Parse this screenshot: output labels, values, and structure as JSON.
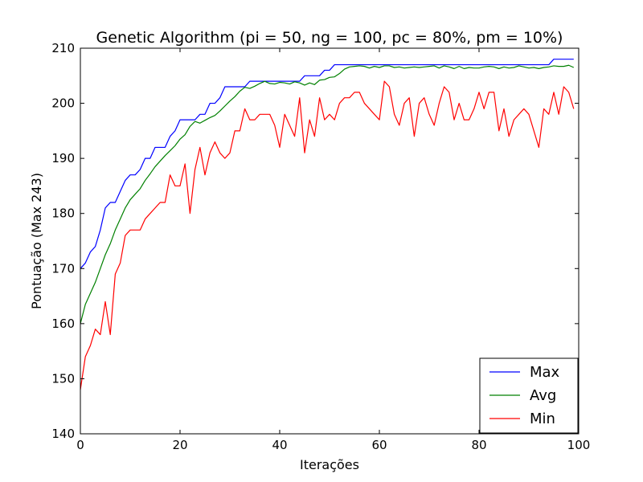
{
  "chart_data": {
    "type": "line",
    "title": "Genetic Algorithm (pi = 50, ng = 100, pc = 80%, pm = 10%)",
    "xlabel": "Iterações",
    "ylabel": "Pontuação (Max 243)",
    "xlim": [
      0,
      100
    ],
    "ylim": [
      140,
      210
    ],
    "xticks": [
      0,
      20,
      40,
      60,
      80,
      100
    ],
    "yticks": [
      140,
      150,
      160,
      170,
      180,
      190,
      200,
      210
    ],
    "grid": false,
    "legend_position": "bottom-right",
    "x": [
      0,
      1,
      2,
      3,
      4,
      5,
      6,
      7,
      8,
      9,
      10,
      11,
      12,
      13,
      14,
      15,
      16,
      17,
      18,
      19,
      20,
      21,
      22,
      23,
      24,
      25,
      26,
      27,
      28,
      29,
      30,
      31,
      32,
      33,
      34,
      35,
      36,
      37,
      38,
      39,
      40,
      41,
      42,
      43,
      44,
      45,
      46,
      47,
      48,
      49,
      50,
      51,
      52,
      53,
      54,
      55,
      56,
      57,
      58,
      59,
      60,
      61,
      62,
      63,
      64,
      65,
      66,
      67,
      68,
      69,
      70,
      71,
      72,
      73,
      74,
      75,
      76,
      77,
      78,
      79,
      80,
      81,
      82,
      83,
      84,
      85,
      86,
      87,
      88,
      89,
      90,
      91,
      92,
      93,
      94,
      95,
      96,
      97,
      98,
      99
    ],
    "series": [
      {
        "name": "Max",
        "color": "#0000ff",
        "values": [
          170,
          171,
          173,
          174,
          177,
          181,
          182,
          182,
          184,
          186,
          187,
          187,
          188,
          190,
          190,
          192,
          192,
          192,
          194,
          195,
          197,
          197,
          197,
          197,
          198,
          198,
          200,
          200,
          201,
          203,
          203,
          203,
          203,
          203,
          204,
          204,
          204,
          204,
          204,
          204,
          204,
          204,
          204,
          204,
          204,
          205,
          205,
          205,
          205,
          206,
          206,
          207,
          207,
          207,
          207,
          207,
          207,
          207,
          207,
          207,
          207,
          207,
          207,
          207,
          207,
          207,
          207,
          207,
          207,
          207,
          207,
          207,
          207,
          207,
          207,
          207,
          207,
          207,
          207,
          207,
          207,
          207,
          207,
          207,
          207,
          207,
          207,
          207,
          207,
          207,
          207,
          207,
          207,
          207,
          207,
          208,
          208,
          208,
          208,
          208
        ]
      },
      {
        "name": "Avg",
        "color": "#008000",
        "values": [
          160,
          163.5,
          165.5,
          167.5,
          170,
          172.5,
          174.5,
          177,
          179,
          181,
          182.5,
          183.5,
          184.5,
          186,
          187.2,
          188.5,
          189.5,
          190.5,
          191.4,
          192.3,
          193.5,
          194.3,
          195.8,
          196.7,
          196.4,
          196.9,
          197.4,
          197.8,
          198.6,
          199.5,
          200.4,
          201.2,
          202.2,
          202.9,
          202.7,
          203.1,
          203.6,
          204,
          203.6,
          203.5,
          203.8,
          203.7,
          203.5,
          203.9,
          203.7,
          203.3,
          203.7,
          203.4,
          204.2,
          204.3,
          204.7,
          204.8,
          205.4,
          206.2,
          206.6,
          206.7,
          206.8,
          206.7,
          206.4,
          206.7,
          206.5,
          206.8,
          206.8,
          206.5,
          206.6,
          206.4,
          206.5,
          206.6,
          206.5,
          206.6,
          206.7,
          206.8,
          206.4,
          206.8,
          206.6,
          206.3,
          206.7,
          206.3,
          206.5,
          206.4,
          206.4,
          206.6,
          206.7,
          206.6,
          206.3,
          206.6,
          206.4,
          206.5,
          206.8,
          206.6,
          206.4,
          206.5,
          206.3,
          206.5,
          206.6,
          206.8,
          206.7,
          206.7,
          206.9,
          206.5
        ]
      },
      {
        "name": "Min",
        "color": "#ff0000",
        "values": [
          148,
          154,
          156,
          159,
          158,
          164,
          158,
          169,
          171,
          176,
          177,
          177,
          177,
          179,
          180,
          181,
          182,
          182,
          187,
          185,
          185,
          189,
          180,
          188,
          192,
          187,
          191,
          193,
          191,
          190,
          191,
          195,
          195,
          199,
          197,
          197,
          198,
          198,
          198,
          196,
          192,
          198,
          196,
          194,
          201,
          191,
          197,
          194,
          201,
          197,
          198,
          197,
          200,
          201,
          201,
          202,
          202,
          200,
          199,
          198,
          197,
          204,
          203,
          198,
          196,
          200,
          201,
          194,
          200,
          201,
          198,
          196,
          200,
          203,
          202,
          197,
          200,
          197,
          197,
          199,
          202,
          199,
          202,
          202,
          195,
          199,
          194,
          197,
          198,
          199,
          198,
          195,
          192,
          199,
          198,
          202,
          198,
          203,
          202,
          199
        ]
      }
    ]
  }
}
